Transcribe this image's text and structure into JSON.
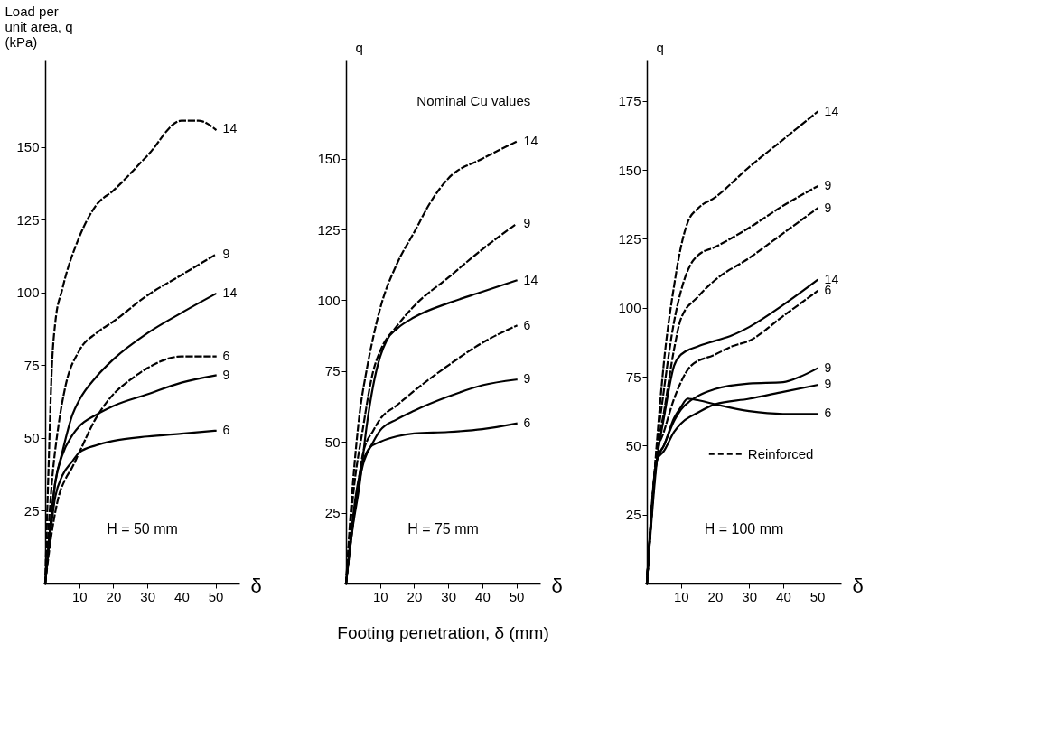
{
  "chart_data": [
    {
      "type": "line",
      "title": "H = 50 mm",
      "xlabel": "δ",
      "ylabel": "Load per unit area, q (kPa)",
      "xlim": [
        0,
        57
      ],
      "ylim": [
        0,
        180
      ],
      "xticks": [
        10,
        20,
        30,
        40,
        50
      ],
      "yticks": [
        25,
        50,
        75,
        100,
        125,
        150
      ],
      "series": [
        {
          "name": "14",
          "color": "#000000",
          "line_style": "dashed",
          "x": [
            0,
            1,
            2,
            3,
            5,
            10,
            15,
            20,
            30,
            40,
            45,
            50
          ],
          "values": [
            0,
            40,
            75,
            90,
            101,
            119,
            130,
            135,
            147,
            159,
            159,
            156
          ]
        },
        {
          "name": "9",
          "color": "#000000",
          "line_style": "dashed",
          "x": [
            0,
            2,
            4,
            6,
            10,
            15,
            20,
            30,
            40,
            50
          ],
          "values": [
            0,
            35,
            55,
            68,
            80,
            86,
            90,
            99,
            106,
            113
          ]
        },
        {
          "name": "14",
          "color": "#000000",
          "line_style": "solid",
          "x": [
            0,
            3,
            5,
            8,
            10,
            15,
            20,
            30,
            40,
            50
          ],
          "values": [
            0,
            35,
            45,
            58,
            63,
            71,
            77,
            86,
            93,
            99.5
          ]
        },
        {
          "name": "6",
          "color": "#000000",
          "line_style": "dashed",
          "x": [
            0,
            2,
            4,
            6,
            8,
            10,
            15,
            20,
            25,
            30,
            40,
            50
          ],
          "values": [
            0,
            18,
            30,
            36,
            40,
            45,
            57,
            65,
            70,
            74,
            78,
            78
          ]
        },
        {
          "name": "9",
          "color": "#000000",
          "line_style": "solid",
          "x": [
            0,
            3,
            5,
            8,
            10,
            15,
            20,
            30,
            40,
            50
          ],
          "values": [
            0,
            35,
            44,
            51,
            54,
            58,
            61,
            65,
            69,
            71.5
          ]
        },
        {
          "name": "6",
          "color": "#000000",
          "line_style": "solid",
          "x": [
            0,
            3,
            5,
            8,
            10,
            15,
            20,
            30,
            40,
            50
          ],
          "values": [
            0,
            30,
            37,
            42,
            45,
            47.5,
            49,
            50.5,
            51.5,
            52.5
          ]
        }
      ]
    },
    {
      "type": "line",
      "title": "H = 75 mm",
      "xlabel": "δ",
      "ylabel": "q",
      "xlim": [
        0,
        57
      ],
      "ylim": [
        0,
        185
      ],
      "xticks": [
        10,
        20,
        30,
        40,
        50
      ],
      "yticks": [
        25,
        50,
        75,
        100,
        125,
        150
      ],
      "annotations": [
        "Nominal Cu values",
        "Footing penetration, δ (mm)"
      ],
      "series": [
        {
          "name": "14",
          "color": "#000000",
          "line_style": "dashed",
          "x": [
            0,
            2,
            4,
            6,
            8,
            10,
            15,
            20,
            25,
            30,
            40,
            50
          ],
          "values": [
            0,
            35,
            60,
            75,
            87,
            97,
            113,
            124,
            135,
            143,
            150,
            156
          ]
        },
        {
          "name": "9",
          "color": "#000000",
          "line_style": "dashed",
          "x": [
            0,
            2,
            5,
            8,
            10,
            15,
            20,
            30,
            40,
            50
          ],
          "values": [
            0,
            30,
            55,
            75,
            82,
            91,
            98,
            108,
            118,
            127
          ]
        },
        {
          "name": "14",
          "color": "#000000",
          "line_style": "solid",
          "x": [
            0,
            2,
            4,
            6,
            8,
            10,
            12,
            15,
            20,
            30,
            40,
            50
          ],
          "values": [
            0,
            20,
            35,
            55,
            70,
            80,
            86,
            90,
            94,
            99,
            103,
            107
          ]
        },
        {
          "name": "6",
          "color": "#000000",
          "line_style": "dashed",
          "x": [
            0,
            3,
            5,
            8,
            10,
            15,
            20,
            30,
            40,
            50
          ],
          "values": [
            0,
            30,
            46,
            54,
            58,
            63,
            68,
            77,
            85,
            91
          ]
        },
        {
          "name": "9",
          "color": "#000000",
          "line_style": "solid",
          "x": [
            0,
            3,
            5,
            8,
            10,
            15,
            20,
            30,
            40,
            50
          ],
          "values": [
            0,
            30,
            42,
            50,
            54,
            58,
            61,
            66,
            70,
            72
          ]
        },
        {
          "name": "6",
          "color": "#000000",
          "line_style": "solid",
          "x": [
            0,
            3,
            5,
            7,
            10,
            15,
            20,
            30,
            40,
            50
          ],
          "values": [
            0,
            32,
            43,
            48,
            50,
            52,
            53,
            53.5,
            54.5,
            56.5
          ]
        }
      ]
    },
    {
      "type": "line",
      "title": "H = 100 mm",
      "xlabel": "δ",
      "ylabel": "q",
      "xlim": [
        0,
        57
      ],
      "ylim": [
        0,
        190
      ],
      "xticks": [
        10,
        20,
        30,
        40,
        50
      ],
      "yticks": [
        25,
        50,
        75,
        100,
        125,
        150,
        175
      ],
      "annotations": [
        "Reinforced"
      ],
      "series": [
        {
          "name": "14",
          "color": "#000000",
          "line_style": "dashed",
          "x": [
            0,
            3,
            5,
            8,
            10,
            12,
            15,
            20,
            30,
            40,
            50
          ],
          "values": [
            0,
            52,
            80,
            108,
            122,
            131,
            136,
            140,
            151,
            161,
            171
          ]
        },
        {
          "name": "9",
          "color": "#000000",
          "line_style": "dashed",
          "x": [
            0,
            3,
            5,
            8,
            10,
            13,
            15,
            20,
            30,
            40,
            50
          ],
          "values": [
            0,
            50,
            70,
            95,
            106,
            116,
            119,
            122,
            129,
            137,
            144
          ]
        },
        {
          "name": "9",
          "color": "#000000",
          "line_style": "dashed",
          "x": [
            0,
            3,
            5,
            8,
            10,
            15,
            20,
            30,
            40,
            50
          ],
          "values": [
            0,
            48,
            62,
            85,
            96,
            104,
            110,
            118,
            127,
            136
          ]
        },
        {
          "name": "14",
          "color": "#000000",
          "line_style": "solid",
          "x": [
            0,
            3,
            5,
            8,
            10,
            15,
            20,
            25,
            30,
            40,
            50
          ],
          "values": [
            0,
            45,
            60,
            79,
            83,
            86,
            88,
            90,
            93,
            101,
            110
          ]
        },
        {
          "name": "6",
          "color": "#000000",
          "line_style": "dashed",
          "x": [
            0,
            3,
            5,
            8,
            10,
            13,
            20,
            25,
            30,
            40,
            50
          ],
          "values": [
            0,
            47,
            55,
            67,
            73,
            79,
            83,
            86,
            88,
            97,
            106
          ]
        },
        {
          "name": "9",
          "color": "#000000",
          "line_style": "solid",
          "x": [
            0,
            3,
            5,
            8,
            10,
            15,
            20,
            30,
            40,
            45,
            50
          ],
          "values": [
            0,
            45,
            50,
            59,
            63,
            68,
            70.5,
            72.5,
            73,
            75,
            78
          ]
        },
        {
          "name": "9",
          "color": "#000000",
          "line_style": "solid",
          "x": [
            0,
            3,
            5,
            8,
            10,
            15,
            20,
            30,
            40,
            50
          ],
          "values": [
            0,
            45,
            48,
            55,
            58,
            62,
            65,
            67,
            69.5,
            72
          ]
        },
        {
          "name": "6",
          "color": "#000000",
          "line_style": "solid",
          "x": [
            0,
            3,
            5,
            8,
            10,
            12,
            15,
            20,
            30,
            40,
            50
          ],
          "values": [
            0,
            45,
            50,
            60,
            64,
            67,
            66.5,
            65,
            62.5,
            61.5,
            61.5
          ]
        }
      ]
    }
  ]
}
